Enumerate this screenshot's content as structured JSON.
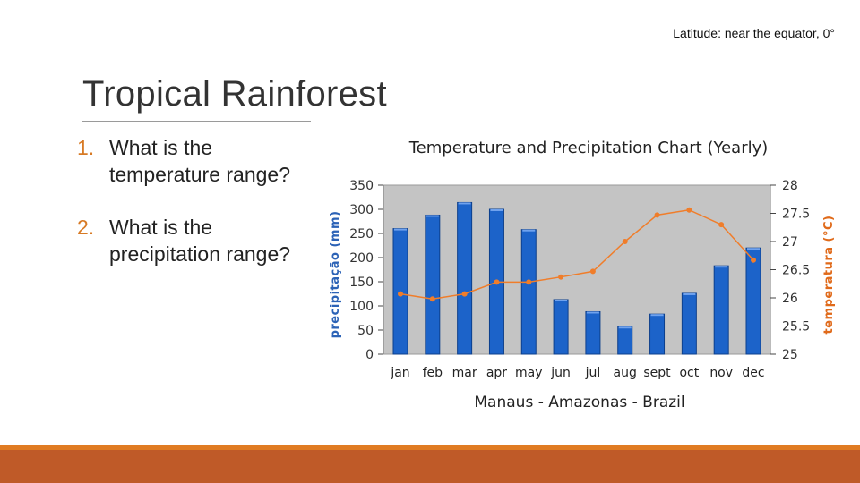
{
  "slide": {
    "latitude_note": "Latitude:  near the equator, 0°",
    "title": "Tropical Rainforest",
    "questions": [
      {
        "number": "1.",
        "text": "What is the temperature range?"
      },
      {
        "number": "2.",
        "text": "What is the precipitation range?"
      }
    ]
  },
  "colors": {
    "accent": "#d77a25",
    "footer": "#bf5a28",
    "bar": "#1c63c9",
    "line": "#f07d2a",
    "plot_bg": "#c4c4c4",
    "left_axis_title": "#2b62b6",
    "right_axis_title": "#e06a1a"
  },
  "chart_data": {
    "type": "bar",
    "title": "Temperature and Precipitation Chart (Yearly)",
    "subtitle": "Manaus - Amazonas - Brazil",
    "categories": [
      "jan",
      "feb",
      "mar",
      "apr",
      "may",
      "jun",
      "jul",
      "aug",
      "sept",
      "oct",
      "nov",
      "dec"
    ],
    "ylabel": "precipitação (mm)",
    "y2label": "temperatura (°C)",
    "ylim": [
      0,
      350
    ],
    "y2lim": [
      25,
      28
    ],
    "yticks": [
      "0",
      "50",
      "100",
      "150",
      "200",
      "250",
      "300",
      "350"
    ],
    "y2ticks": [
      "25",
      "25.5",
      "26",
      "26.5",
      "27",
      "27.5",
      "28"
    ],
    "series": [
      {
        "type": "bar",
        "axis": "left",
        "values": [
          260,
          288,
          314,
          300,
          258,
          113,
          88,
          57,
          83,
          126,
          183,
          220
        ]
      },
      {
        "type": "line",
        "axis": "right",
        "values": [
          26.07,
          25.98,
          26.07,
          26.28,
          26.28,
          26.37,
          26.47,
          27.0,
          27.47,
          27.56,
          27.3,
          26.67
        ]
      }
    ],
    "grid": false,
    "legend": "none"
  }
}
